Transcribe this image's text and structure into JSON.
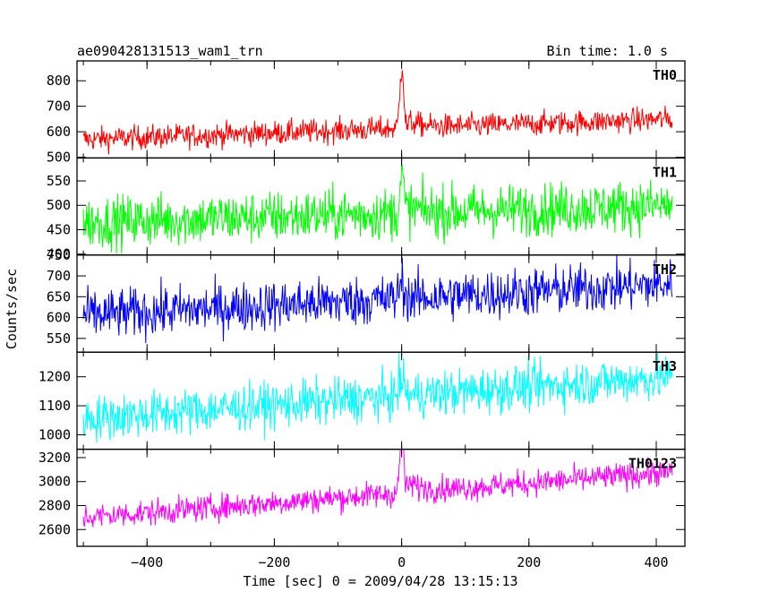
{
  "header": {
    "title": "ae090428131513_wam1_trn",
    "bin_time": "Bin time: 1.0 s"
  },
  "chart_data": {
    "type": "line",
    "title": "ae090428131513_wam1_trn",
    "subtitle": "Bin time: 1.0 s",
    "xlabel": "Time [sec] 0 = 2009/04/28 13:15:13",
    "ylabel": "Counts/sec",
    "xlim": [
      -510,
      445
    ],
    "x_ticks": [
      -400,
      -200,
      0,
      200,
      400
    ],
    "x_tick_labels": [
      "−400",
      "−200",
      "0",
      "200",
      "400"
    ],
    "x_range_data": [
      -500,
      425
    ],
    "grid": false,
    "panels": [
      {
        "name": "TH0",
        "color": "#ff0000",
        "ylim": [
          497,
          878
        ],
        "yticks": [
          500,
          600,
          700,
          800
        ],
        "baseline_start": 570,
        "baseline_end": 650,
        "noise": 24,
        "peak": 230,
        "peak_width": 3,
        "tail": 40,
        "tail_tau": 25,
        "dip": 30
      },
      {
        "name": "TH1",
        "color": "#00ff00",
        "ylim": [
          398,
          597
        ],
        "yticks": [
          400,
          450,
          500,
          550
        ],
        "baseline_start": 465,
        "baseline_end": 500,
        "noise": 27,
        "peak": 70,
        "peak_width": 3,
        "tail": 20,
        "tail_tau": 20,
        "dip": 10
      },
      {
        "name": "TH2",
        "color": "#0000ff",
        "ylim": [
          517,
          750
        ],
        "yticks": [
          550,
          600,
          650,
          700,
          750
        ],
        "baseline_start": 605,
        "baseline_end": 680,
        "noise": 30,
        "peak": 40,
        "peak_width": 4,
        "tail": 0,
        "tail_tau": 20,
        "dip": 0
      },
      {
        "name": "TH3",
        "color": "#00ffff",
        "ylim": [
          950,
          1285
        ],
        "yticks": [
          1000,
          1100,
          1200
        ],
        "baseline_start": 1055,
        "baseline_end": 1200,
        "noise": 40,
        "peak": 60,
        "peak_width": 4,
        "tail": 0,
        "tail_tau": 20,
        "dip": 0
      },
      {
        "name": "TH0123",
        "color": "#ff00ff",
        "ylim": [
          2460,
          3270
        ],
        "yticks": [
          2600,
          2800,
          3000,
          3200
        ],
        "baseline_start": 2700,
        "baseline_end": 3080,
        "noise": 55,
        "peak": 450,
        "peak_width": 3,
        "tail": 120,
        "tail_tau": 25,
        "dip": 80
      }
    ]
  }
}
